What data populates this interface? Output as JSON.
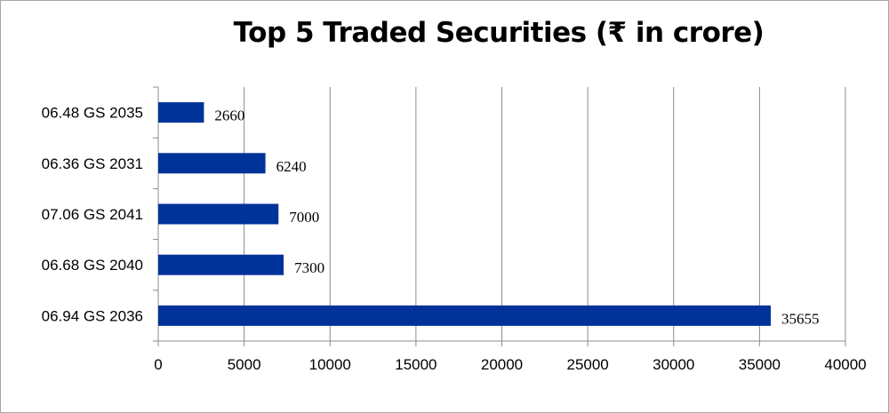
{
  "chart_data": {
    "type": "bar",
    "orientation": "horizontal",
    "title": "Top 5 Traded Securities (₹ in crore)",
    "categories": [
      "06.48 GS 2035",
      "06.36 GS 2031",
      "07.06 GS 2041",
      "06.68 GS 2040",
      "06.94 GS 2036"
    ],
    "values": [
      2660,
      6240,
      7000,
      7300,
      35655
    ],
    "data_labels": [
      "2660",
      "6240",
      "7000",
      "7300",
      "35655"
    ],
    "xlim": [
      0,
      40000
    ],
    "x_ticks": [
      "0",
      "5000",
      "10000",
      "15000",
      "20000",
      "25000",
      "30000",
      "35000",
      "40000"
    ],
    "grid": "vertical",
    "bar_color": "#003399",
    "legend": "none"
  }
}
